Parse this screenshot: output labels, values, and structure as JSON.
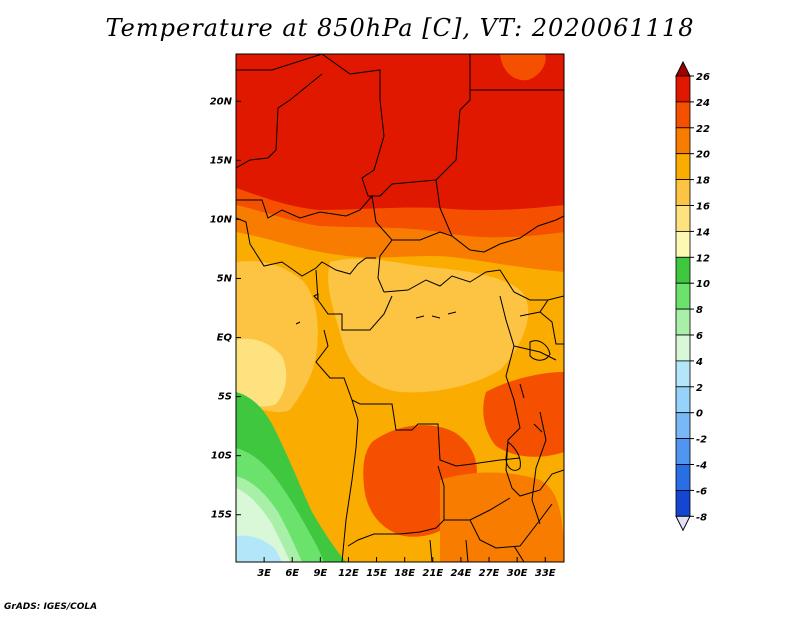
{
  "title": "Temperature at 850hPa [C], VT: 2020061118",
  "footer": "GrADS: IGES/COLA",
  "map": {
    "lon_range": [
      0,
      35
    ],
    "lat_range": [
      -19,
      24
    ],
    "lon_ticks": [
      "3E",
      "6E",
      "9E",
      "12E",
      "15E",
      "18E",
      "21E",
      "24E",
      "27E",
      "30E",
      "33E"
    ],
    "lon_tick_values": [
      3,
      6,
      9,
      12,
      15,
      18,
      21,
      24,
      27,
      30,
      33
    ],
    "lat_ticks": [
      "20N",
      "15N",
      "10N",
      "5N",
      "EQ",
      "5S",
      "10S",
      "15S"
    ],
    "lat_tick_values": [
      20,
      15,
      10,
      5,
      0,
      -5,
      -10,
      -15
    ]
  },
  "colorbar": {
    "labels": [
      "26",
      "24",
      "22",
      "20",
      "18",
      "16",
      "14",
      "12",
      "10",
      "8",
      "6",
      "4",
      "2",
      "0",
      "-2",
      "-4",
      "-6",
      "-8"
    ],
    "colors": [
      "#a00000",
      "#e11800",
      "#f45000",
      "#f87c00",
      "#fbac00",
      "#fcc442",
      "#fde27f",
      "#fdf8b4",
      "#3fc83f",
      "#6be26b",
      "#a8f0a8",
      "#d8f8d8",
      "#b4e6fa",
      "#96d2fa",
      "#78b8f6",
      "#5096f0",
      "#2a6ee4",
      "#1446d2",
      "#0a2aaa",
      "#082080",
      "#e1e1f8"
    ]
  }
}
